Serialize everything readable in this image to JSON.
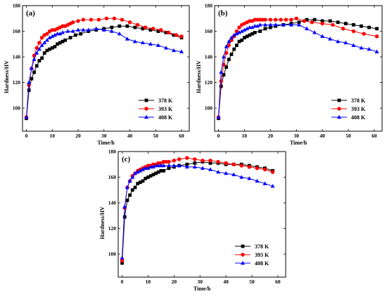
{
  "chart_data": [
    {
      "type": "line",
      "panel_label": "(a)",
      "xlabel": "Time/h",
      "ylabel": "Hardness/HV",
      "xlim": [
        -1.5,
        63
      ],
      "ylim": [
        82,
        180
      ],
      "xticks": [
        0,
        10,
        20,
        30,
        40,
        50,
        60
      ],
      "yticks": [
        100,
        120,
        140,
        160,
        180
      ],
      "legend_position": "bottom-right",
      "series": [
        {
          "name": "378 K",
          "color": "#000000",
          "marker": "square",
          "x": [
            0,
            1,
            2,
            3,
            4,
            5,
            6,
            7,
            8,
            9,
            10,
            11,
            12,
            13,
            14,
            15,
            17,
            19,
            21,
            24,
            27,
            30,
            33,
            36,
            39,
            42,
            45,
            48,
            51,
            54,
            57,
            60
          ],
          "y": [
            92,
            114,
            123,
            128,
            133,
            137,
            139,
            143,
            145,
            146,
            147,
            148,
            150,
            151,
            152,
            153,
            155,
            157,
            158,
            160,
            161,
            162,
            163,
            164,
            164,
            163,
            162,
            161,
            160,
            159,
            157,
            155
          ]
        },
        {
          "name": "393 K",
          "color": "#ff0000",
          "marker": "circle",
          "x": [
            0,
            1,
            2,
            3,
            4,
            5,
            6,
            7,
            8,
            9,
            10,
            11,
            12,
            13,
            14,
            15,
            16,
            17,
            18,
            20,
            22,
            25,
            28,
            31,
            34,
            37,
            40,
            43,
            46,
            49,
            52,
            55,
            58,
            60
          ],
          "y": [
            93,
            118,
            131,
            141,
            147,
            151,
            155,
            157,
            158,
            160,
            161,
            161,
            162,
            163,
            164,
            164,
            165,
            166,
            167,
            168,
            169,
            169,
            169,
            170,
            170,
            169,
            167,
            165,
            163,
            162,
            161,
            159,
            157,
            156
          ]
        },
        {
          "name": "408 K",
          "color": "#0000ff",
          "marker": "triangle",
          "x": [
            0,
            1,
            2,
            3,
            4,
            5,
            6,
            7,
            8,
            9,
            10,
            11,
            12,
            13,
            14,
            16,
            18,
            20,
            22,
            24,
            27,
            30,
            33,
            36,
            39,
            42,
            45,
            48,
            51,
            54,
            57,
            60
          ],
          "y": [
            93,
            120,
            131,
            138,
            143,
            146,
            149,
            151,
            153,
            155,
            156,
            157,
            158,
            158,
            159,
            160,
            160,
            161,
            161,
            161,
            162,
            161,
            160,
            158,
            154,
            152,
            151,
            150,
            149,
            147,
            145,
            144
          ]
        }
      ]
    },
    {
      "type": "line",
      "panel_label": "(b)",
      "xlabel": "Time/h",
      "ylabel": "Hardness/HV",
      "xlim": [
        -1.5,
        63
      ],
      "ylim": [
        82,
        180
      ],
      "xticks": [
        0,
        10,
        20,
        30,
        40,
        50,
        60
      ],
      "yticks": [
        100,
        120,
        140,
        160,
        180
      ],
      "legend_position": "bottom-right",
      "series": [
        {
          "name": "378 K",
          "color": "#000000",
          "marker": "square",
          "x": [
            0,
            1,
            2,
            3,
            4,
            5,
            6,
            7,
            8,
            9,
            10,
            11,
            12,
            13,
            14,
            16,
            18,
            20,
            22,
            25,
            28,
            31,
            34,
            37,
            40,
            43,
            46,
            49,
            52,
            55,
            58,
            61
          ],
          "y": [
            92,
            117,
            126,
            132,
            138,
            142,
            146,
            149,
            152,
            153,
            155,
            156,
            157,
            158,
            159,
            160,
            162,
            163,
            164,
            165,
            166,
            167,
            169,
            169,
            168,
            168,
            167,
            166,
            165,
            164,
            163,
            162
          ]
        },
        {
          "name": "393 K",
          "color": "#ff0000",
          "marker": "circle",
          "x": [
            0,
            1,
            2,
            3,
            4,
            5,
            6,
            7,
            8,
            9,
            10,
            11,
            12,
            13,
            14,
            15,
            16,
            17,
            18,
            20,
            22,
            24,
            26,
            28,
            30,
            33,
            36,
            40,
            44,
            48,
            52,
            56,
            61
          ],
          "y": [
            93,
            121,
            134,
            143,
            149,
            153,
            156,
            160,
            163,
            165,
            166,
            167,
            168,
            168,
            169,
            169,
            169,
            169,
            169,
            169,
            169,
            169,
            169,
            169,
            170,
            168,
            167,
            166,
            165,
            162,
            160,
            158,
            156
          ]
        },
        {
          "name": "408 K",
          "color": "#0000ff",
          "marker": "triangle",
          "x": [
            0,
            1,
            2,
            3,
            4,
            5,
            6,
            7,
            8,
            9,
            10,
            11,
            12,
            13,
            14,
            15,
            16,
            18,
            20,
            22,
            25,
            28,
            31,
            34,
            37,
            40,
            43,
            46,
            49,
            52,
            55,
            58,
            61
          ],
          "y": [
            93,
            128,
            140,
            148,
            152,
            155,
            157,
            158,
            159,
            160,
            161,
            162,
            163,
            163,
            164,
            164,
            165,
            165,
            165,
            165,
            165,
            165,
            165,
            162,
            159,
            156,
            154,
            152,
            151,
            149,
            147,
            146,
            144
          ]
        }
      ]
    },
    {
      "type": "line",
      "panel_label": "(c)",
      "xlabel": "Time/h",
      "ylabel": "Hardness/HV",
      "xlim": [
        -1.5,
        63
      ],
      "ylim": [
        82,
        180
      ],
      "xticks": [
        0,
        10,
        20,
        30,
        40,
        50,
        60
      ],
      "yticks": [
        100,
        120,
        140,
        160,
        180
      ],
      "legend_position": "bottom-right",
      "series": [
        {
          "name": "378 K",
          "color": "#000000",
          "marker": "square",
          "x": [
            0,
            1,
            2,
            3,
            4,
            5,
            6,
            7,
            8,
            9,
            10,
            11,
            12,
            13,
            14,
            15,
            16,
            18,
            20,
            22,
            25,
            28,
            31,
            34,
            37,
            40,
            43,
            46,
            49,
            52,
            55,
            58
          ],
          "y": [
            93,
            129,
            142,
            146,
            150,
            152,
            155,
            156,
            157,
            159,
            160,
            161,
            162,
            163,
            164,
            165,
            165,
            167,
            168,
            169,
            170,
            171,
            172,
            171,
            171,
            170,
            170,
            170,
            169,
            168,
            167,
            165
          ]
        },
        {
          "name": "393 K",
          "color": "#ff0000",
          "marker": "circle",
          "x": [
            0,
            1,
            2,
            3,
            4,
            5,
            6,
            7,
            8,
            9,
            10,
            11,
            12,
            13,
            14,
            15,
            16,
            17,
            18,
            20,
            22,
            25,
            28,
            31,
            34,
            37,
            40,
            43,
            46,
            49,
            52,
            55,
            58
          ],
          "y": [
            95,
            136,
            152,
            157,
            161,
            163,
            165,
            166,
            167,
            168,
            169,
            169,
            170,
            170,
            171,
            171,
            172,
            172,
            172,
            173,
            174,
            175,
            174,
            173,
            173,
            172,
            171,
            170,
            169,
            168,
            167,
            166,
            164
          ]
        },
        {
          "name": "408 K",
          "color": "#0000ff",
          "marker": "triangle",
          "x": [
            0,
            1,
            2,
            3,
            4,
            5,
            6,
            7,
            8,
            9,
            10,
            11,
            12,
            13,
            14,
            15,
            16,
            18,
            20,
            22,
            25,
            28,
            31,
            34,
            37,
            40,
            43,
            46,
            49,
            52,
            55,
            58
          ],
          "y": [
            97,
            137,
            152,
            157,
            160,
            163,
            164,
            165,
            166,
            167,
            167,
            168,
            168,
            169,
            169,
            169,
            169,
            169,
            169,
            169,
            168,
            168,
            167,
            166,
            164,
            163,
            162,
            160,
            159,
            157,
            155,
            153
          ]
        }
      ]
    }
  ]
}
